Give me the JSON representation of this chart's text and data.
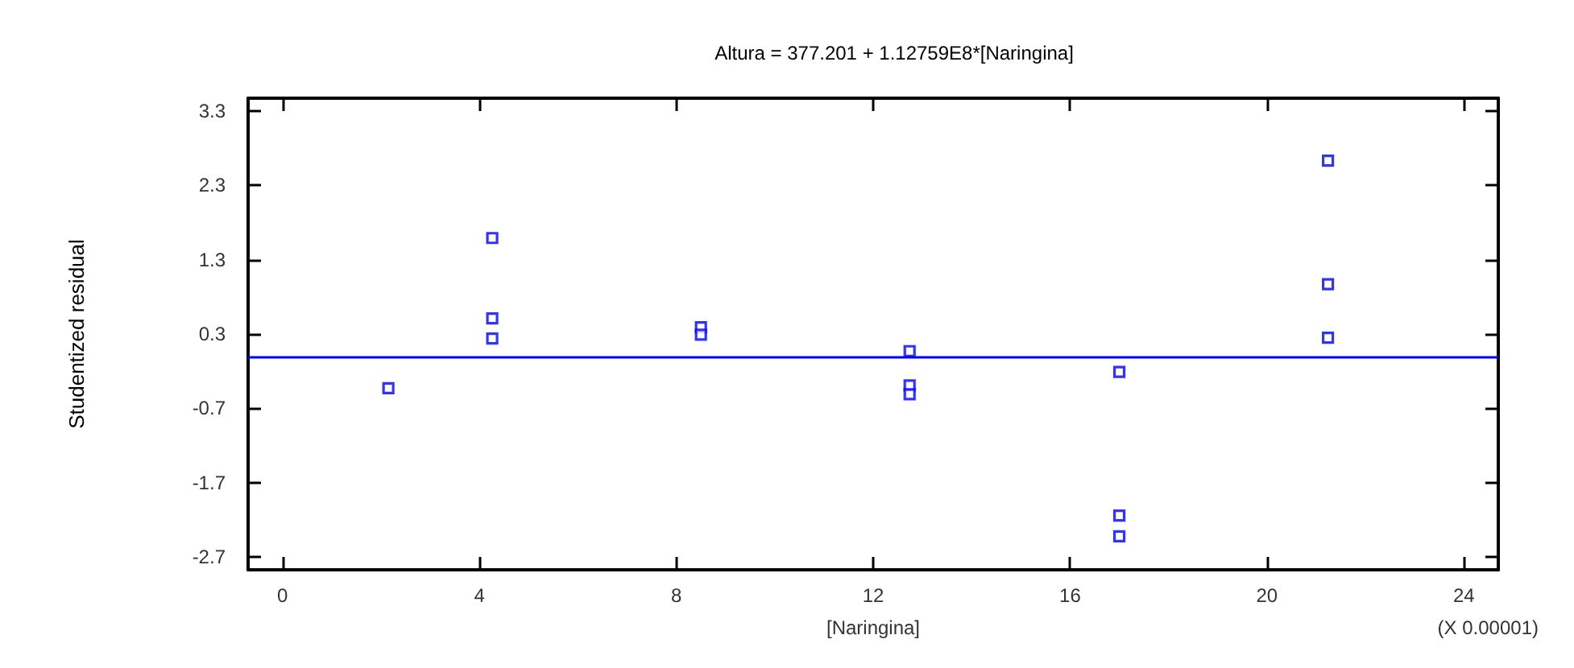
{
  "chart_data": {
    "type": "scatter",
    "title": "Altura = 377.201 + 1.12759E8*[Naringina]",
    "xlabel": "[Naringina]",
    "ylabel": "Studentized residual",
    "annotations": [
      "(X 0.00001)"
    ],
    "x": [
      2.15,
      4.26,
      4.26,
      4.26,
      8.5,
      8.5,
      12.74,
      12.74,
      12.74,
      17,
      17,
      17,
      21.24,
      21.24,
      21.24
    ],
    "series": [
      {
        "color": "#0000ff",
        "values": [
          -0.43,
          1.59,
          0.51,
          0.24,
          0.39,
          0.29,
          0.07,
          -0.39,
          -0.51,
          -0.21,
          -2.14,
          -2.42,
          2.63,
          0.97,
          0.25
        ]
      }
    ],
    "xlim": [
      -0.7,
      24.7
    ],
    "xticks": [
      0,
      4,
      8,
      12,
      16,
      20,
      24
    ],
    "ylim": [
      -2.87,
      3.47
    ],
    "yticks": [
      -2.7,
      -1.7,
      -0.7,
      0.3,
      1.3,
      2.3,
      3.3
    ],
    "ref_lines": [
      {
        "axis": "y",
        "value": 0,
        "color": "#0000ff"
      }
    ],
    "marker": "square"
  }
}
